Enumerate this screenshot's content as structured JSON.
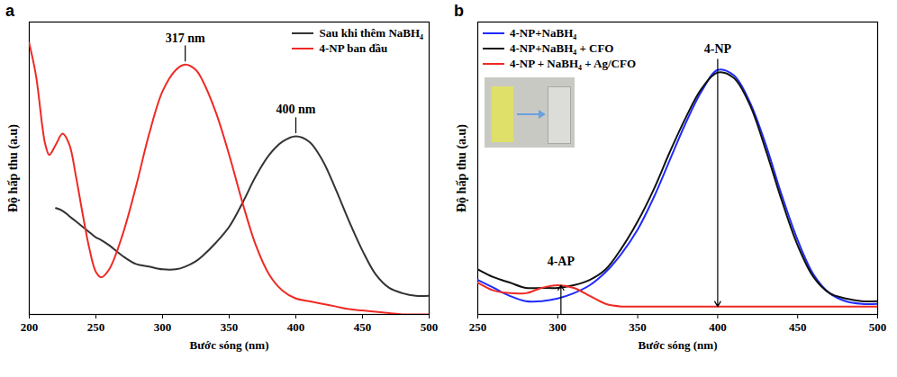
{
  "chart_data": [
    {
      "type": "line",
      "panel_label": "a",
      "xlabel": "Bước sóng (nm)",
      "ylabel": "Độ hấp thu (a.u)",
      "xlim": [
        200,
        500
      ],
      "xticks": [
        200,
        250,
        300,
        350,
        400,
        450,
        500
      ],
      "ylim": [
        0,
        1.1
      ],
      "tick_labels": "x",
      "legend": "top-right",
      "x": [
        200,
        205,
        210,
        212,
        215,
        220,
        225,
        230,
        235,
        240,
        245,
        250,
        254,
        260,
        270,
        280,
        290,
        300,
        310,
        317,
        325,
        330,
        340,
        350,
        360,
        370,
        380,
        390,
        400,
        410,
        420,
        430,
        440,
        450,
        460,
        470,
        480,
        490,
        500
      ],
      "series": [
        {
          "name": "Sau khi thêm NaBH₄",
          "color": "#333333",
          "values": [
            null,
            null,
            null,
            null,
            null,
            0.4,
            0.39,
            0.37,
            0.35,
            0.33,
            0.31,
            0.29,
            0.28,
            0.26,
            0.22,
            0.19,
            0.18,
            0.17,
            0.17,
            0.18,
            0.2,
            0.22,
            0.27,
            0.33,
            0.42,
            0.52,
            0.6,
            0.65,
            0.67,
            0.65,
            0.58,
            0.47,
            0.35,
            0.24,
            0.15,
            0.1,
            0.08,
            0.07,
            0.07
          ]
        },
        {
          "name": "4-NP ban đầu",
          "color": "#ee2a24",
          "values": [
            1.02,
            0.9,
            0.7,
            0.64,
            0.6,
            0.64,
            0.68,
            0.64,
            0.52,
            0.38,
            0.25,
            0.16,
            0.14,
            0.17,
            0.3,
            0.48,
            0.68,
            0.84,
            0.92,
            0.94,
            0.92,
            0.88,
            0.76,
            0.6,
            0.42,
            0.26,
            0.15,
            0.09,
            0.06,
            0.05,
            0.04,
            0.03,
            0.02,
            0.015,
            0.01,
            0.005,
            0,
            0,
            0
          ]
        }
      ],
      "annotations": [
        {
          "text": "317 nm",
          "x": 317,
          "y": 1.04,
          "marker": "line"
        },
        {
          "text": "400 nm",
          "x": 400,
          "y": 0.77,
          "marker": "line"
        }
      ]
    },
    {
      "type": "line",
      "panel_label": "b",
      "xlabel": "Bước sóng (nm)",
      "ylabel": "Độ hấp thu (a.u)",
      "xlim": [
        250,
        500
      ],
      "xticks": [
        250,
        300,
        350,
        400,
        450,
        500
      ],
      "ylim": [
        0,
        1.1
      ],
      "tick_labels": "x",
      "legend": "top-left",
      "x": [
        250,
        260,
        270,
        280,
        290,
        300,
        310,
        320,
        330,
        340,
        350,
        360,
        370,
        380,
        390,
        400,
        410,
        420,
        430,
        440,
        450,
        460,
        470,
        480,
        490,
        500
      ],
      "series": [
        {
          "name": "4-NP+NaBH₄",
          "color": "#1f2bff",
          "values": [
            0.13,
            0.1,
            0.07,
            0.05,
            0.05,
            0.06,
            0.08,
            0.11,
            0.16,
            0.23,
            0.32,
            0.44,
            0.58,
            0.72,
            0.84,
            0.92,
            0.9,
            0.8,
            0.64,
            0.45,
            0.28,
            0.15,
            0.08,
            0.05,
            0.04,
            0.04
          ]
        },
        {
          "name": "4-NP+NaBH₄ + CFO",
          "color": "#111111",
          "values": [
            0.17,
            0.14,
            0.12,
            0.1,
            0.1,
            0.1,
            0.11,
            0.13,
            0.17,
            0.25,
            0.35,
            0.47,
            0.61,
            0.74,
            0.85,
            0.91,
            0.89,
            0.79,
            0.62,
            0.43,
            0.26,
            0.14,
            0.08,
            0.06,
            0.05,
            0.05
          ]
        },
        {
          "name": "4-NP + NaBH₄ + Ag/CFO",
          "color": "#ee2a24",
          "values": [
            0.12,
            0.09,
            0.08,
            0.08,
            0.1,
            0.11,
            0.1,
            0.07,
            0.04,
            0.03,
            0.03,
            0.03,
            0.03,
            0.03,
            0.03,
            0.03,
            0.03,
            0.03,
            0.03,
            0.03,
            0.03,
            0.03,
            0.03,
            0.03,
            0.03,
            0.03
          ]
        }
      ],
      "annotations": [
        {
          "text": "4-NP",
          "x": 400,
          "y": 1.0,
          "marker": "arrow-down"
        },
        {
          "text": "4-AP",
          "x": 302,
          "y": 0.2,
          "marker": "arrow-up"
        }
      ]
    }
  ]
}
